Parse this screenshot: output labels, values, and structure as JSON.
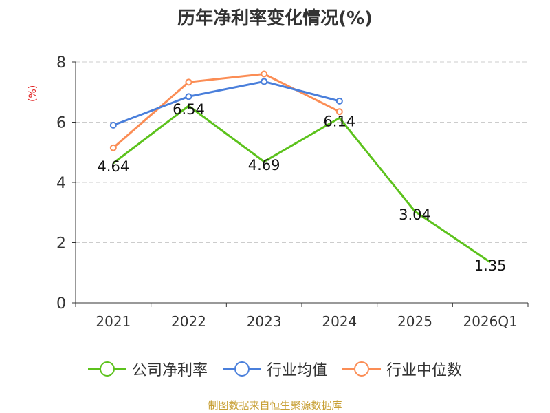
{
  "title": "历年净利率变化情况(%)",
  "unit_label": "(%)",
  "source": "制图数据来自恒生聚源数据库",
  "colors": {
    "company": "#5cc21c",
    "industry_avg": "#4a7fdb",
    "industry_median": "#fb8d55",
    "grid": "#cccccc",
    "axis": "#333333",
    "unit": "#e02020",
    "source": "#c8a036"
  },
  "chart_data": {
    "type": "line",
    "title": "历年净利率变化情况(%)",
    "ylabel": "(%)",
    "categories": [
      "2021",
      "2022",
      "2023",
      "2024",
      "2025",
      "2026Q1"
    ],
    "ylim": [
      0,
      8
    ],
    "yticks": [
      "0",
      "2",
      "4",
      "6",
      "8"
    ],
    "grid": true,
    "legend_position": "bottom",
    "series": [
      {
        "name": "公司净利率",
        "color": "#5cc21c",
        "values": [
          4.64,
          6.54,
          4.69,
          6.14,
          3.04,
          1.35
        ],
        "labels": [
          "4.64",
          "6.54",
          "4.69",
          "6.14",
          "3.04",
          "1.35"
        ]
      },
      {
        "name": "行业均值",
        "color": "#4a7fdb",
        "values": [
          5.9,
          6.85,
          7.35,
          6.7,
          null,
          null
        ]
      },
      {
        "name": "行业中位数",
        "color": "#fb8d55",
        "values": [
          5.15,
          7.33,
          7.6,
          6.35,
          null,
          null
        ]
      }
    ]
  }
}
